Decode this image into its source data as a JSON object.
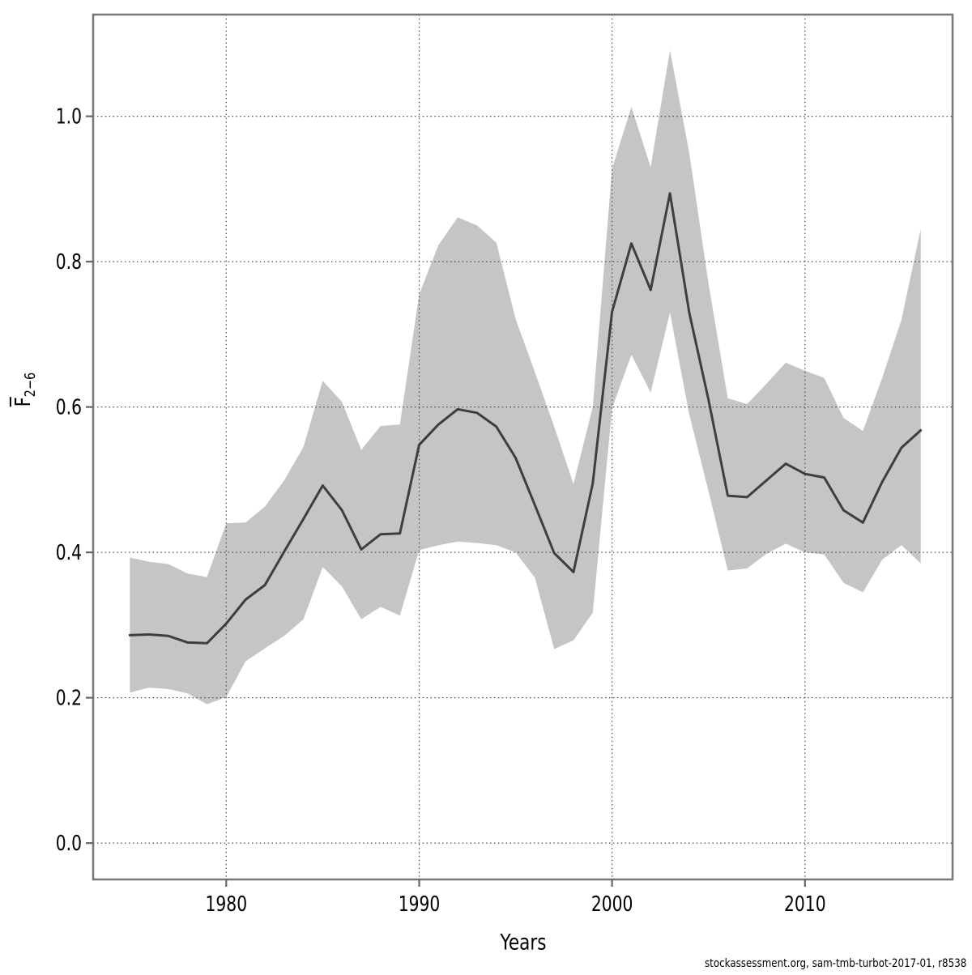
{
  "page": {
    "background": "#ffffff"
  },
  "footer": {
    "text": "stockassessment.org, sam-tmb-turbot-2017-01, r8538"
  },
  "chart_data": {
    "type": "line",
    "title": "",
    "xlabel": "Years",
    "ylabel_base": "F",
    "ylabel_subscript": "2−6",
    "legend": "none",
    "grid": "dotted",
    "xlim": [
      1973.1,
      2017.65
    ],
    "ylim": [
      -0.05,
      1.14
    ],
    "x_ticks": [
      "1980",
      "1990",
      "2000",
      "2010"
    ],
    "x_tick_values": [
      1980,
      1990,
      2000,
      2010
    ],
    "y_ticks": [
      "0.0",
      "0.2",
      "0.4",
      "0.6",
      "0.8",
      "1.0"
    ],
    "y_tick_values": [
      0.0,
      0.2,
      0.4,
      0.6,
      0.8,
      1.0
    ],
    "colors": {
      "band": "#c5c5c5",
      "mean_line": "#3e3e3e",
      "box": "#777777",
      "tick": "#666666",
      "gridline": "#4a4a4a",
      "text": "#000000"
    },
    "years": [
      1975,
      1976,
      1977,
      1978,
      1979,
      1980,
      1981,
      1982,
      1983,
      1984,
      1985,
      1986,
      1987,
      1988,
      1989,
      1990,
      1991,
      1992,
      1993,
      1994,
      1995,
      1996,
      1997,
      1998,
      1999,
      2000,
      2001,
      2002,
      2003,
      2004,
      2005,
      2006,
      2007,
      2008,
      2009,
      2010,
      2011,
      2012,
      2013,
      2014,
      2015,
      2016
    ],
    "series": [
      {
        "name": "Fbar mean",
        "values": [
          0.286,
          0.287,
          0.285,
          0.276,
          0.275,
          0.302,
          0.335,
          0.355,
          0.401,
          0.446,
          0.492,
          0.458,
          0.404,
          0.425,
          0.426,
          0.548,
          0.576,
          0.597,
          0.592,
          0.573,
          0.53,
          0.465,
          0.399,
          0.373,
          0.495,
          0.731,
          0.825,
          0.761,
          0.894,
          0.73,
          0.61,
          0.478,
          0.476,
          0.499,
          0.522,
          0.508,
          0.503,
          0.458,
          0.441,
          0.497,
          0.544,
          0.568
        ]
      },
      {
        "name": "ci lower",
        "values": [
          0.207,
          0.214,
          0.212,
          0.206,
          0.191,
          0.201,
          0.25,
          0.268,
          0.285,
          0.308,
          0.38,
          0.353,
          0.308,
          0.325,
          0.313,
          0.403,
          0.41,
          0.415,
          0.413,
          0.41,
          0.4,
          0.365,
          0.267,
          0.279,
          0.317,
          0.598,
          0.672,
          0.62,
          0.73,
          0.59,
          0.484,
          0.375,
          0.378,
          0.398,
          0.412,
          0.4,
          0.397,
          0.358,
          0.345,
          0.39,
          0.41,
          0.385
        ]
      },
      {
        "name": "ci upper",
        "values": [
          0.393,
          0.387,
          0.384,
          0.371,
          0.366,
          0.44,
          0.441,
          0.463,
          0.499,
          0.545,
          0.636,
          0.607,
          0.541,
          0.574,
          0.576,
          0.755,
          0.823,
          0.861,
          0.85,
          0.826,
          0.721,
          0.648,
          0.573,
          0.494,
          0.6,
          0.928,
          1.013,
          0.93,
          1.091,
          0.95,
          0.77,
          0.612,
          0.604,
          0.632,
          0.661,
          0.65,
          0.64,
          0.585,
          0.567,
          0.64,
          0.72,
          0.845
        ]
      }
    ]
  }
}
